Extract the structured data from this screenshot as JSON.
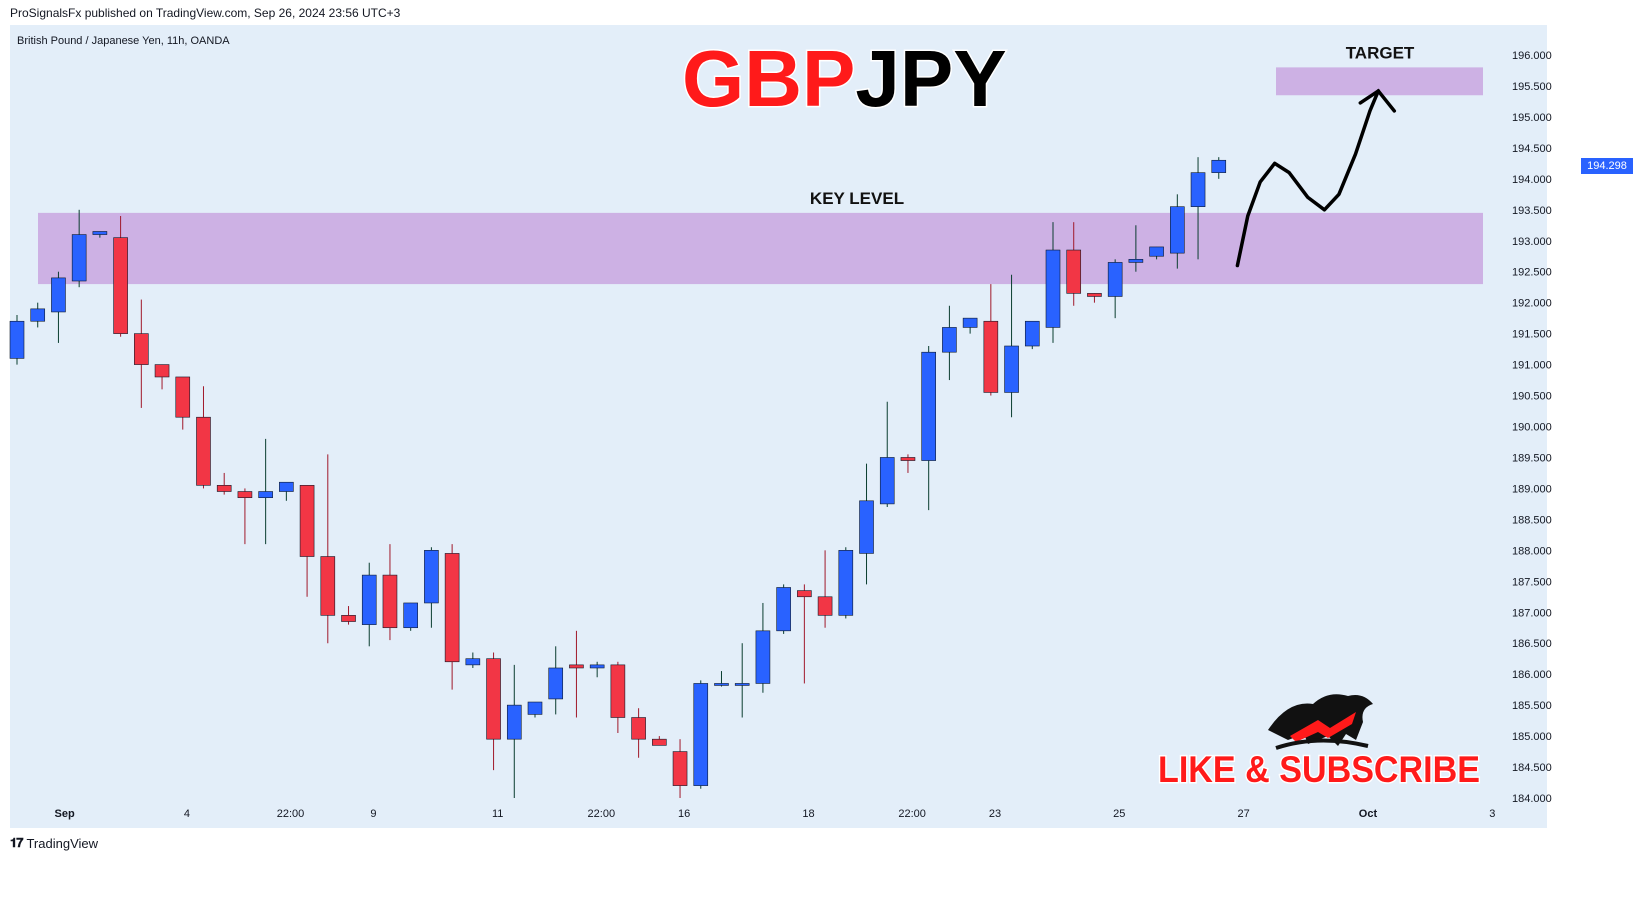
{
  "header": {
    "publisher_line": "ProSignalsFx published on TradingView.com, Sep 26, 2024 23:56 UTC+3"
  },
  "footer": {
    "brand": "TradingView",
    "logo_icon": "tradingview-logo-icon"
  },
  "branding": {
    "like_subscribe": "LIKE & SUBSCRIBE",
    "logo_icon": "bull-bear-logo-icon"
  },
  "colors": {
    "bull": "#2962ff",
    "bear": "#f23645",
    "zone": "#c9a6e0",
    "chart_bg": "#e3eef9",
    "title_red": "#ff1a1a",
    "title_black": "#000000"
  },
  "chart_data": {
    "type": "candlestick",
    "symbol_info": "British Pound / Japanese Yen, 11h, OANDA",
    "title": {
      "part1": "GBP",
      "part2": "JPY"
    },
    "last_price": "194.298",
    "ylim": [
      184.0,
      196.3
    ],
    "y_ticks": [
      "196.000",
      "195.500",
      "195.000",
      "194.500",
      "194.000",
      "193.500",
      "193.000",
      "192.500",
      "192.000",
      "191.500",
      "191.000",
      "190.500",
      "190.000",
      "189.500",
      "189.000",
      "188.500",
      "188.000",
      "187.500",
      "187.000",
      "186.500",
      "186.000",
      "185.500",
      "185.000",
      "184.500",
      "184.000"
    ],
    "x_ticks": [
      {
        "label": "Sep",
        "bold": true,
        "index": 2.3
      },
      {
        "label": "4",
        "index": 8.2
      },
      {
        "label": "22:00",
        "index": 13.2
      },
      {
        "label": "9",
        "index": 17.2
      },
      {
        "label": "11",
        "index": 23.2
      },
      {
        "label": "22:00",
        "index": 28.2
      },
      {
        "label": "16",
        "index": 32.2
      },
      {
        "label": "18",
        "index": 38.2
      },
      {
        "label": "22:00",
        "index": 43.2
      },
      {
        "label": "23",
        "index": 47.2
      },
      {
        "label": "25",
        "index": 53.2
      },
      {
        "label": "27",
        "index": 59.2
      },
      {
        "label": "Oct",
        "bold": true,
        "index": 65.2
      },
      {
        "label": "3",
        "index": 71.2
      }
    ],
    "annotations": {
      "key_level": {
        "label": "KEY LEVEL",
        "range": [
          192.3,
          193.45
        ]
      },
      "target": {
        "label": "TARGET",
        "range": [
          195.35,
          195.8
        ]
      }
    },
    "projected_path": [
      [
        58.9,
        192.6
      ],
      [
        59.4,
        193.4
      ],
      [
        60.0,
        193.95
      ],
      [
        60.7,
        194.25
      ],
      [
        61.4,
        194.1
      ],
      [
        62.3,
        193.7
      ],
      [
        63.1,
        193.5
      ],
      [
        63.8,
        193.75
      ],
      [
        64.6,
        194.4
      ],
      [
        65.3,
        195.1
      ],
      [
        65.7,
        195.42
      ]
    ],
    "candles": [
      {
        "o": 191.1,
        "h": 191.8,
        "l": 191.0,
        "c": 191.7
      },
      {
        "o": 191.7,
        "h": 192.0,
        "l": 191.6,
        "c": 191.9
      },
      {
        "o": 191.85,
        "h": 192.5,
        "l": 191.35,
        "c": 192.4
      },
      {
        "o": 192.35,
        "h": 193.5,
        "l": 192.25,
        "c": 193.1
      },
      {
        "o": 193.1,
        "h": 193.15,
        "l": 193.05,
        "c": 193.15
      },
      {
        "o": 193.05,
        "h": 193.4,
        "l": 191.45,
        "c": 191.5
      },
      {
        "o": 191.5,
        "h": 192.05,
        "l": 190.3,
        "c": 191.0
      },
      {
        "o": 191.0,
        "h": 191.0,
        "l": 190.6,
        "c": 190.8
      },
      {
        "o": 190.8,
        "h": 190.8,
        "l": 189.95,
        "c": 190.15
      },
      {
        "o": 190.15,
        "h": 190.65,
        "l": 189.0,
        "c": 189.05
      },
      {
        "o": 189.05,
        "h": 189.25,
        "l": 188.9,
        "c": 188.95
      },
      {
        "o": 188.95,
        "h": 189.0,
        "l": 188.1,
        "c": 188.85
      },
      {
        "o": 188.85,
        "h": 189.8,
        "l": 188.1,
        "c": 188.95
      },
      {
        "o": 188.95,
        "h": 189.1,
        "l": 188.8,
        "c": 189.1
      },
      {
        "o": 189.05,
        "h": 189.05,
        "l": 187.25,
        "c": 187.9
      },
      {
        "o": 187.9,
        "h": 189.55,
        "l": 186.5,
        "c": 186.95
      },
      {
        "o": 186.95,
        "h": 187.1,
        "l": 186.8,
        "c": 186.85
      },
      {
        "o": 186.8,
        "h": 187.8,
        "l": 186.45,
        "c": 187.6
      },
      {
        "o": 187.6,
        "h": 188.1,
        "l": 186.55,
        "c": 186.75
      },
      {
        "o": 186.75,
        "h": 187.15,
        "l": 186.7,
        "c": 187.15
      },
      {
        "o": 187.15,
        "h": 188.05,
        "l": 186.75,
        "c": 188.0
      },
      {
        "o": 187.95,
        "h": 188.1,
        "l": 185.75,
        "c": 186.2
      },
      {
        "o": 186.15,
        "h": 186.35,
        "l": 186.1,
        "c": 186.25
      },
      {
        "o": 186.25,
        "h": 186.35,
        "l": 184.45,
        "c": 184.95
      },
      {
        "o": 184.95,
        "h": 186.15,
        "l": 184.0,
        "c": 185.5
      },
      {
        "o": 185.35,
        "h": 185.55,
        "l": 185.3,
        "c": 185.55
      },
      {
        "o": 185.6,
        "h": 186.45,
        "l": 185.35,
        "c": 186.1
      },
      {
        "o": 186.15,
        "h": 186.7,
        "l": 185.3,
        "c": 186.1
      },
      {
        "o": 186.1,
        "h": 186.2,
        "l": 185.95,
        "c": 186.15
      },
      {
        "o": 186.15,
        "h": 186.2,
        "l": 185.05,
        "c": 185.3
      },
      {
        "o": 185.3,
        "h": 185.45,
        "l": 184.65,
        "c": 184.95
      },
      {
        "o": 184.95,
        "h": 185.0,
        "l": 184.85,
        "c": 184.85
      },
      {
        "o": 184.75,
        "h": 184.95,
        "l": 184.0,
        "c": 184.2
      },
      {
        "o": 184.2,
        "h": 185.9,
        "l": 184.15,
        "c": 185.85
      },
      {
        "o": 185.85,
        "h": 186.05,
        "l": 185.8,
        "c": 185.85
      },
      {
        "o": 185.85,
        "h": 186.5,
        "l": 185.3,
        "c": 185.85
      },
      {
        "o": 185.85,
        "h": 187.15,
        "l": 185.7,
        "c": 186.7
      },
      {
        "o": 186.7,
        "h": 187.45,
        "l": 186.65,
        "c": 187.4
      },
      {
        "o": 187.35,
        "h": 187.45,
        "l": 185.85,
        "c": 187.25
      },
      {
        "o": 187.25,
        "h": 188.0,
        "l": 186.75,
        "c": 186.95
      },
      {
        "o": 186.95,
        "h": 188.05,
        "l": 186.9,
        "c": 188.0
      },
      {
        "o": 187.95,
        "h": 189.4,
        "l": 187.45,
        "c": 188.8
      },
      {
        "o": 188.75,
        "h": 190.4,
        "l": 188.7,
        "c": 189.5
      },
      {
        "o": 189.5,
        "h": 189.55,
        "l": 189.25,
        "c": 189.45
      },
      {
        "o": 189.45,
        "h": 191.3,
        "l": 188.65,
        "c": 191.2
      },
      {
        "o": 191.2,
        "h": 191.95,
        "l": 190.75,
        "c": 191.6
      },
      {
        "o": 191.6,
        "h": 191.75,
        "l": 191.5,
        "c": 191.75
      },
      {
        "o": 191.7,
        "h": 192.3,
        "l": 190.5,
        "c": 190.55
      },
      {
        "o": 190.55,
        "h": 192.45,
        "l": 190.15,
        "c": 191.3
      },
      {
        "o": 191.3,
        "h": 191.7,
        "l": 191.25,
        "c": 191.7
      },
      {
        "o": 191.6,
        "h": 193.3,
        "l": 191.35,
        "c": 192.85
      },
      {
        "o": 192.85,
        "h": 193.3,
        "l": 191.95,
        "c": 192.15
      },
      {
        "o": 192.15,
        "h": 192.15,
        "l": 192.0,
        "c": 192.1
      },
      {
        "o": 192.1,
        "h": 192.7,
        "l": 191.75,
        "c": 192.65
      },
      {
        "o": 192.65,
        "h": 193.25,
        "l": 192.5,
        "c": 192.7
      },
      {
        "o": 192.75,
        "h": 192.9,
        "l": 192.7,
        "c": 192.9
      },
      {
        "o": 192.8,
        "h": 193.75,
        "l": 192.55,
        "c": 193.55
      },
      {
        "o": 193.55,
        "h": 194.35,
        "l": 192.7,
        "c": 194.1
      },
      {
        "o": 194.1,
        "h": 194.35,
        "l": 194.0,
        "c": 194.3
      }
    ]
  }
}
